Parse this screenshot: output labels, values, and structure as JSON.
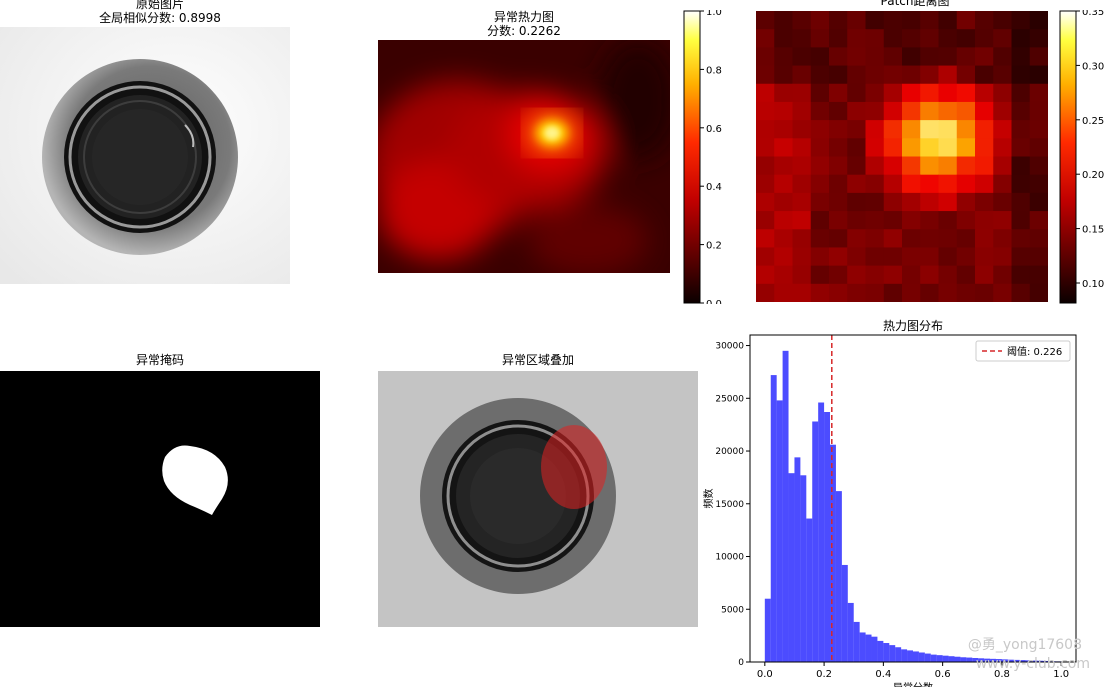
{
  "panels": {
    "original": {
      "title": "原始图片",
      "subtitle": "全局相似分数: 0.8998"
    },
    "heatmap": {
      "title": "异常热力图",
      "subtitle": "分数: 0.2262",
      "colorbar_ticks": [
        "0.0",
        "0.2",
        "0.4",
        "0.6",
        "0.8",
        "1.0"
      ]
    },
    "patch": {
      "title": "Patch距离图",
      "colorbar_ticks": [
        "0.10",
        "0.15",
        "0.20",
        "0.25",
        "0.30",
        "0.35"
      ]
    },
    "mask": {
      "title": "异常掩码"
    },
    "overlay": {
      "title": "异常区域叠加"
    }
  },
  "watermarks": [
    "@勇_yong17608",
    "www.y-club.com"
  ],
  "chart_data": {
    "type": "bar",
    "title": "热力图分布",
    "xlabel": "异常分数",
    "ylabel": "频数",
    "xlim": [
      -0.05,
      1.05
    ],
    "ylim": [
      0,
      31000
    ],
    "xticks": [
      "0.0",
      "0.2",
      "0.4",
      "0.6",
      "0.8",
      "1.0"
    ],
    "yticks": [
      "0",
      "5000",
      "10000",
      "15000",
      "20000",
      "25000",
      "30000"
    ],
    "bin_width": 0.02,
    "bin_starts": [
      0.0,
      0.02,
      0.04,
      0.06,
      0.08,
      0.1,
      0.12,
      0.14,
      0.16,
      0.18,
      0.2,
      0.22,
      0.24,
      0.26,
      0.28,
      0.3,
      0.32,
      0.34,
      0.36,
      0.38,
      0.4,
      0.42,
      0.44,
      0.46,
      0.48,
      0.5,
      0.52,
      0.54,
      0.56,
      0.58,
      0.6,
      0.62,
      0.64,
      0.66,
      0.68,
      0.7,
      0.72,
      0.74,
      0.76,
      0.78,
      0.8,
      0.82,
      0.84,
      0.86,
      0.88,
      0.9,
      0.92,
      0.94,
      0.96,
      0.98
    ],
    "values": [
      6000,
      27200,
      24800,
      29500,
      17900,
      19400,
      17700,
      13600,
      22800,
      24600,
      23700,
      20600,
      16200,
      9200,
      5600,
      3800,
      2800,
      2600,
      2400,
      2000,
      1800,
      1600,
      1400,
      1200,
      1100,
      1000,
      900,
      800,
      700,
      650,
      600,
      550,
      500,
      450,
      420,
      380,
      350,
      320,
      300,
      280,
      250,
      220,
      200,
      180,
      160,
      140,
      120,
      100,
      80,
      60
    ],
    "bar_color": "#0000ff",
    "threshold": {
      "value": 0.226,
      "label": "阈值: 0.226",
      "color": "#d62728"
    },
    "legend_position": "top-right"
  }
}
